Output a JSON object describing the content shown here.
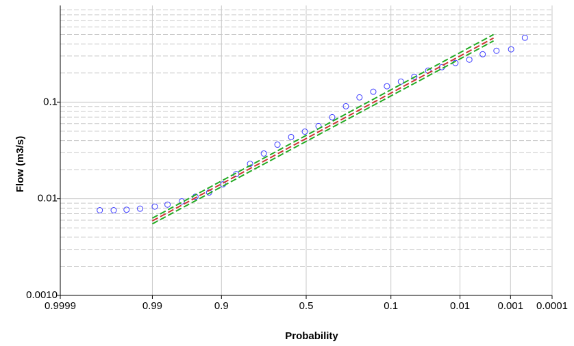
{
  "chart_data": {
    "type": "scatter",
    "xlabel": "Probability",
    "ylabel": "Flow (m3/s)",
    "xscale": "probability",
    "yscale": "log",
    "grid": true,
    "xlim": [
      0.9999,
      0.0001
    ],
    "ylim": [
      0.001,
      1
    ],
    "xticks": [
      0.9999,
      0.99,
      0.9,
      0.5,
      0.1,
      0.01,
      0.001,
      0.0001
    ],
    "yticks": [
      {
        "value": 0.001,
        "label": "0.0010"
      },
      0.01,
      0.1
    ],
    "y_minor_grid": [
      0.002,
      0.003,
      0.004,
      0.005,
      0.006,
      0.007,
      0.008,
      0.009,
      0.02,
      0.03,
      0.04,
      0.05,
      0.06,
      0.07,
      0.08,
      0.09,
      0.2,
      0.3,
      0.4,
      0.5,
      0.6,
      0.7,
      0.8,
      0.9
    ],
    "series": [
      {
        "type": "scatter",
        "color": "#3a3aff",
        "x": [
          0.9991,
          0.9982,
          0.9967,
          0.994,
          0.989,
          0.982,
          0.97,
          0.953,
          0.929,
          0.896,
          0.855,
          0.802,
          0.739,
          0.668,
          0.59,
          0.508,
          0.426,
          0.347,
          0.274,
          0.21,
          0.155,
          0.111,
          0.076,
          0.051,
          0.0325,
          0.02,
          0.012,
          0.0068,
          0.0038,
          0.002,
          0.00097,
          0.00047
        ],
        "values": [
          0.0076,
          0.0076,
          0.0077,
          0.0079,
          0.0083,
          0.0087,
          0.0094,
          0.0105,
          0.0116,
          0.0141,
          0.018,
          0.023,
          0.0294,
          0.0363,
          0.0435,
          0.0495,
          0.0565,
          0.0698,
          0.0906,
          0.112,
          0.128,
          0.146,
          0.163,
          0.183,
          0.212,
          0.23,
          0.254,
          0.275,
          0.313,
          0.34,
          0.352,
          0.464
        ]
      },
      {
        "type": "line",
        "color": "#22aa22",
        "style": "dashed",
        "x": [
          0.99,
          0.0023
        ],
        "values": [
          0.0063,
          0.5
        ]
      },
      {
        "type": "line",
        "color": "#cc3333",
        "style": "dashed",
        "x": [
          0.99,
          0.0023
        ],
        "values": [
          0.0059,
          0.46
        ]
      },
      {
        "type": "line",
        "color": "#22aa22",
        "style": "dashed",
        "x": [
          0.99,
          0.0023
        ],
        "values": [
          0.0055,
          0.43
        ]
      }
    ]
  }
}
